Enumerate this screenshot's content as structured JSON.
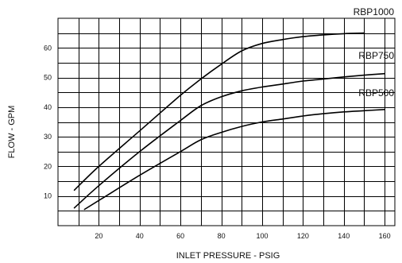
{
  "chart_data": {
    "type": "line",
    "title": "",
    "xlabel": "INLET PRESSURE - PSIG",
    "ylabel": "FLOW - GPM",
    "xlim": [
      0,
      165
    ],
    "ylim": [
      0,
      70
    ],
    "grid": true,
    "x_ticks": [
      20,
      40,
      60,
      80,
      100,
      120,
      140,
      160
    ],
    "y_ticks": [
      10,
      20,
      30,
      40,
      50,
      60
    ],
    "series": [
      {
        "name": "RBP1000",
        "x": [
          8,
          20,
          40,
          60,
          70,
          80,
          90,
          100,
          110,
          120,
          130,
          140,
          150
        ],
        "y": [
          12,
          20,
          32,
          44,
          49.5,
          54.5,
          59,
          61.5,
          62.8,
          63.8,
          64.4,
          64.8,
          65
        ]
      },
      {
        "name": "RBP750",
        "x": [
          8,
          20,
          40,
          60,
          70,
          80,
          90,
          100,
          110,
          120,
          130,
          140,
          150,
          160
        ],
        "y": [
          6,
          13.5,
          25,
          35.5,
          40.5,
          43.5,
          45.5,
          46.8,
          47.8,
          48.8,
          49.5,
          50.2,
          50.8,
          51.3
        ]
      },
      {
        "name": "RBP500",
        "x": [
          13,
          20,
          40,
          60,
          70,
          80,
          90,
          100,
          110,
          120,
          130,
          140,
          150,
          160
        ],
        "y": [
          5.5,
          8.5,
          17,
          25,
          29,
          31.5,
          33.5,
          35,
          36,
          37,
          37.8,
          38.4,
          38.8,
          39.2
        ]
      }
    ]
  }
}
